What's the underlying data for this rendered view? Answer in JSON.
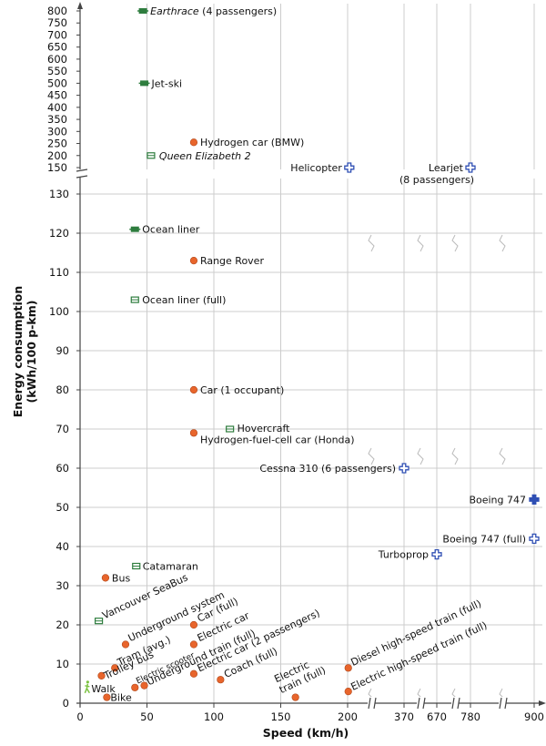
{
  "chart_data": {
    "type": "scatter",
    "title": "",
    "xlabel": "Speed (km/h)",
    "ylabel_line1": "Energy consumption",
    "ylabel_line2": "(kWh/100 p-km)",
    "x_ticks": [
      "0",
      "50",
      "100",
      "150",
      "200",
      "370",
      "670",
      "780",
      "900"
    ],
    "y_ticks_lower": [
      "0",
      "10",
      "20",
      "30",
      "40",
      "50",
      "60",
      "70",
      "80",
      "90",
      "100",
      "110",
      "120",
      "130"
    ],
    "y_ticks_upper": [
      "150",
      "200",
      "250",
      "300",
      "350",
      "400",
      "450",
      "500",
      "550",
      "600",
      "650",
      "700",
      "750",
      "800"
    ],
    "colors": {
      "land": "#e8652c",
      "water": "#2e7d3e",
      "air": "#2f4fb4",
      "walk": "#7cc242",
      "grid": "#cccccc"
    },
    "points": [
      {
        "label": "Earthrace",
        "label_suffix": " (4 passengers)",
        "italic": true,
        "x": 47,
        "y": 800,
        "cat": "water",
        "filled": true
      },
      {
        "label": "Jet-ski",
        "x": 48,
        "y": 500,
        "cat": "water",
        "filled": true
      },
      {
        "label": "Hydrogen car (BMW)",
        "x": 85,
        "y": 255,
        "cat": "land"
      },
      {
        "label": "Queen Elizabeth 2",
        "italic": true,
        "x": 53,
        "y": 200,
        "cat": "water",
        "filled": false
      },
      {
        "label": "Helicopter",
        "x": 205,
        "y": 150,
        "cat": "air",
        "filled": false
      },
      {
        "label": "Learjet",
        "label2": "(8 passengers)",
        "x": 780,
        "y": 150,
        "cat": "air",
        "filled": false
      },
      {
        "label": "Ocean liner",
        "x": 41,
        "y": 121,
        "cat": "water",
        "filled": true
      },
      {
        "label": "Range Rover",
        "x": 85,
        "y": 113,
        "cat": "land"
      },
      {
        "label": "Ocean liner (full)",
        "x": 41,
        "y": 103,
        "cat": "water",
        "filled": false
      },
      {
        "label": "Car (1 occupant)",
        "x": 85,
        "y": 80,
        "cat": "land"
      },
      {
        "label": "Hovercraft",
        "x": 112,
        "y": 70,
        "cat": "water",
        "filled": false
      },
      {
        "label": "Hydrogen-fuel-cell car (Honda)",
        "x": 85,
        "y": 69,
        "cat": "land"
      },
      {
        "label": "Cessna 310 (6 passengers)",
        "x": 370,
        "y": 60,
        "cat": "air",
        "filled": false
      },
      {
        "label": "Boeing 747",
        "x": 900,
        "y": 52,
        "cat": "air",
        "filled": true
      },
      {
        "label": "Boeing 747 (full)",
        "x": 900,
        "y": 42,
        "cat": "air",
        "filled": false
      },
      {
        "label": "Turboprop",
        "x": 670,
        "y": 38,
        "cat": "air",
        "filled": false
      },
      {
        "label": "Catamaran",
        "x": 42,
        "y": 35,
        "cat": "water",
        "filled": false
      },
      {
        "label": "Bus",
        "x": 19,
        "y": 32,
        "cat": "land"
      },
      {
        "label": "Vancouver SeaBus",
        "x": 14,
        "y": 21,
        "cat": "water",
        "filled": false
      },
      {
        "label": "Underground system",
        "x": 34,
        "y": 15,
        "cat": "land"
      },
      {
        "label": "Car (full)",
        "x": 85,
        "y": 20,
        "cat": "land"
      },
      {
        "label": "Electric car",
        "x": 85,
        "y": 15,
        "cat": "land"
      },
      {
        "label": "Tram (avg.)",
        "x": 26,
        "y": 9,
        "cat": "land"
      },
      {
        "label": "Trolley bus",
        "x": 16,
        "y": 7,
        "cat": "land"
      },
      {
        "label": "Electric scooter",
        "x": 41,
        "y": 4,
        "cat": "land"
      },
      {
        "label": "Underground train (full)",
        "x": 48,
        "y": 4.5,
        "cat": "land"
      },
      {
        "label": "Electric car (2 passengers)",
        "x": 85,
        "y": 7.5,
        "cat": "land"
      },
      {
        "label": "Coach (full)",
        "x": 105,
        "y": 6,
        "cat": "land"
      },
      {
        "label": "Electric",
        "label2": "train (full)",
        "x": 161,
        "y": 1.5,
        "cat": "land"
      },
      {
        "label": "Diesel high-speed train (full)",
        "x": 202,
        "y": 9,
        "cat": "land"
      },
      {
        "label": "Electric high-speed train (full)",
        "x": 202,
        "y": 3,
        "cat": "land"
      },
      {
        "label": "Walk",
        "x": 5,
        "y": 4,
        "cat": "walk"
      },
      {
        "label": "Bike",
        "x": 20,
        "y": 1.5,
        "cat": "land"
      }
    ]
  }
}
